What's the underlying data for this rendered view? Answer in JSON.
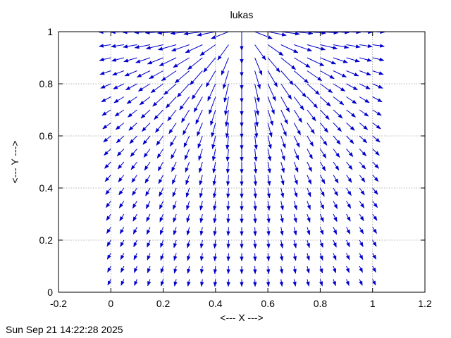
{
  "chart_data": {
    "type": "vector-field",
    "title": "lukas",
    "xlabel": "<--- X --->",
    "ylabel": "<--- Y --->",
    "xlim": [
      -0.2,
      1.2
    ],
    "ylim": [
      0,
      1
    ],
    "xticks": [
      -0.2,
      0,
      0.2,
      0.4,
      0.6,
      0.8,
      1,
      1.2
    ],
    "yticks": [
      0,
      0.2,
      0.4,
      0.6,
      0.8,
      1
    ],
    "xtick_labels": [
      "-0.2",
      "0",
      "0.2",
      "0.4",
      "0.6",
      "0.8",
      "1",
      "1.2"
    ],
    "ytick_labels": [
      "0",
      "0.2",
      "0.4",
      "0.6",
      "0.8",
      "1"
    ],
    "grid": true,
    "arrow_color": "#0000cc",
    "grid_x": {
      "start": 0,
      "step": 0.05,
      "count": 21
    },
    "grid_y": {
      "start": 0.05,
      "step": 0.05,
      "count": 20
    }
  },
  "footer": {
    "timestamp": "Sun Sep 21 14:22:28 2025"
  }
}
